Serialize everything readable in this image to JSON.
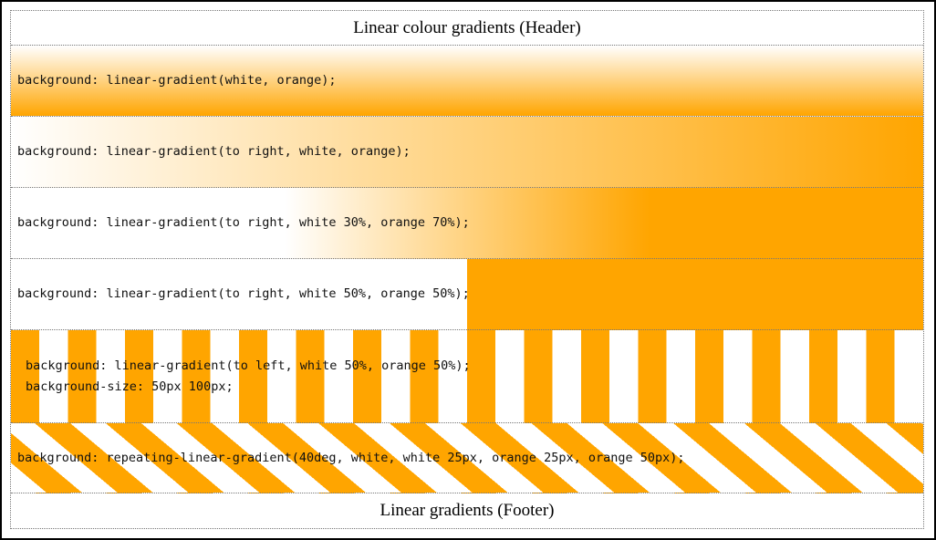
{
  "header": {
    "title": "Linear colour gradients (Header)"
  },
  "rows": [
    {
      "lines": [
        "background: linear-gradient(white, orange);"
      ]
    },
    {
      "lines": [
        "background: linear-gradient(to right, white, orange);"
      ]
    },
    {
      "lines": [
        "background: linear-gradient(to right, white 30%, orange 70%);"
      ]
    },
    {
      "lines": [
        "background: linear-gradient(to right, white 50%, orange 50%);"
      ]
    },
    {
      "lines": [
        "background: linear-gradient(to left, white 50%, orange 50%);",
        "background-size: 50px 100px;"
      ]
    },
    {
      "lines": [
        "background: repeating-linear-gradient(40deg, white, white 25px, orange 25px, orange 50px);"
      ]
    }
  ],
  "footer": {
    "title": "Linear gradients (Footer)"
  },
  "colors": {
    "orange": "#FFA500",
    "white": "#FFFFFF",
    "border": "#777777"
  }
}
